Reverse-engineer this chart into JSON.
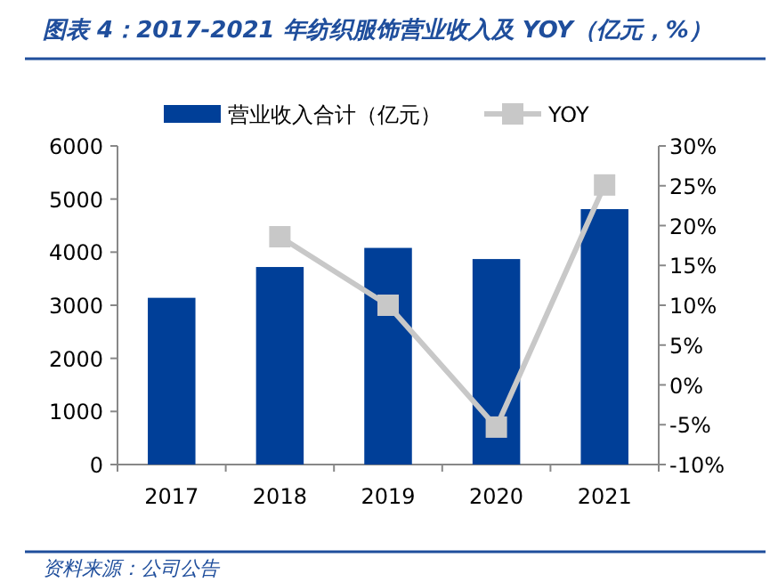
{
  "chart_data": {
    "type": "bar",
    "title": "图表 4：2017-2021 年纺织服饰营业收入及 YOY（亿元，%）",
    "categories": [
      "2017",
      "2018",
      "2019",
      "2020",
      "2021"
    ],
    "series": [
      {
        "name": "营业收入合计（亿元）",
        "color": "#003f98",
        "values": [
          3140,
          3720,
          4080,
          3870,
          4810
        ]
      },
      {
        "name": "YOY",
        "type": "line",
        "axis": "y2",
        "color": "#c8c8c8",
        "marker": "square",
        "values": [
          null,
          18.6,
          10.0,
          -5.3,
          25.1
        ]
      }
    ],
    "ylim": [
      0,
      6000
    ],
    "yticks": [
      0,
      1000,
      2000,
      3000,
      4000,
      5000,
      6000
    ],
    "y2lim": [
      -10,
      30
    ],
    "y2ticks": [
      {
        "value": -10,
        "label": "-10%"
      },
      {
        "value": -5,
        "label": "-5%"
      },
      {
        "value": 0,
        "label": "0%"
      },
      {
        "value": 5,
        "label": "5%"
      },
      {
        "value": 10,
        "label": "10%"
      },
      {
        "value": 15,
        "label": "15%"
      },
      {
        "value": 20,
        "label": "20%"
      },
      {
        "value": 25,
        "label": "25%"
      },
      {
        "value": 30,
        "label": "30%"
      }
    ],
    "grid": false,
    "legend": "top",
    "annotations": [
      "资料来源：公司公告"
    ]
  }
}
